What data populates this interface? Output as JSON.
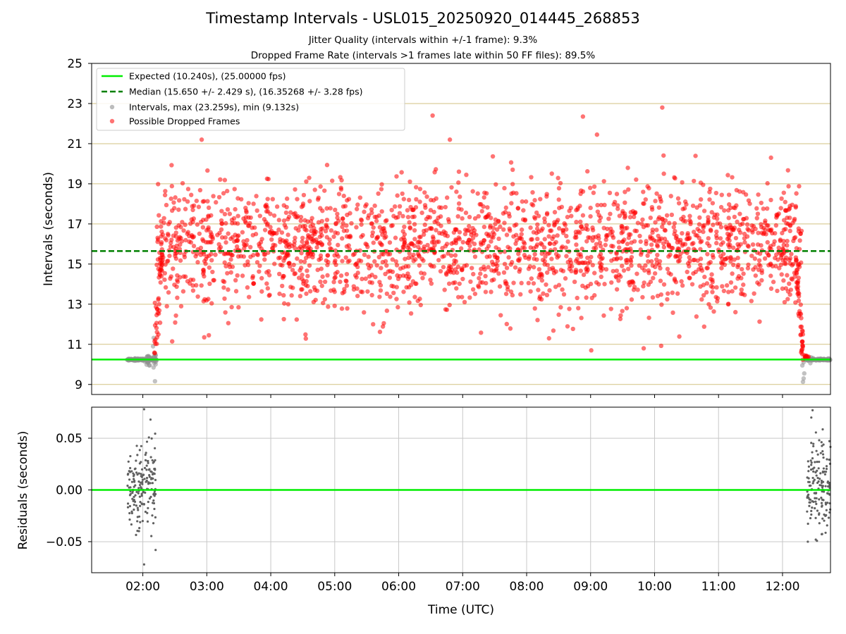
{
  "title": "Timestamp Intervals - USL015_20250920_014445_268853",
  "subtitle_jitter": "Jitter Quality (intervals within +/-1 frame): 9.3%",
  "subtitle_dropped": "Dropped Frame Rate (intervals >1 frames late within 50 FF files): 89.5%",
  "colors": {
    "expected": "#00ee00",
    "median": "#008000",
    "intervals": "#909090",
    "dropped": "#ff0000",
    "grid_top": "#d2c282",
    "grid_bottom": "#c8c8c8",
    "residuals": "#606060"
  },
  "chart_data": [
    {
      "type": "scatter",
      "panel": "intervals",
      "ylabel": "Intervals (seconds)",
      "ylim": [
        8.5,
        25
      ],
      "yticks": [
        "9",
        "11",
        "13",
        "15",
        "17",
        "19",
        "21",
        "23",
        "25"
      ],
      "xlim_hours": [
        1.2,
        12.75
      ],
      "grid": true,
      "legend_position": "upper-left",
      "expected_value": 10.24,
      "median_value": 15.65,
      "legend": [
        "Expected (10.240s), (25.00000 fps)",
        "Median (15.650 +/- 2.429 s), (16.35268 +/- 3.28 fps)",
        "Intervals, max (23.259s), min (9.132s)",
        "Possible Dropped Frames"
      ],
      "series": [
        {
          "name": "Intervals",
          "time_range_hours": [
            [
              1.75,
              2.22
            ],
            [
              12.3,
              12.75
            ]
          ],
          "value_range": [
            9.132,
            11.3
          ],
          "typical": 10.24
        },
        {
          "name": "Possible Dropped Frames",
          "time_range_hours": [
            2.18,
            12.35
          ],
          "max": 22.8,
          "min": 10.6,
          "center": 15.9,
          "approx_count": 2200
        }
      ]
    },
    {
      "type": "scatter",
      "panel": "residuals",
      "ylabel": "Residuals (seconds)",
      "xlabel": "Time (UTC)",
      "ylim": [
        -0.08,
        0.08
      ],
      "yticks": [
        "−0.05",
        "0.00",
        "0.05"
      ],
      "xticks": [
        "02:00",
        "03:00",
        "04:00",
        "05:00",
        "06:00",
        "07:00",
        "08:00",
        "09:00",
        "10:00",
        "11:00",
        "12:00"
      ],
      "xlim_hours": [
        1.2,
        12.75
      ],
      "grid": true,
      "reference_value": 0.0,
      "series": [
        {
          "name": "Residuals",
          "time_range_hours": [
            [
              1.75,
              2.22
            ],
            [
              12.38,
              12.75
            ]
          ],
          "value_range": [
            -0.072,
            0.078
          ]
        }
      ]
    }
  ]
}
